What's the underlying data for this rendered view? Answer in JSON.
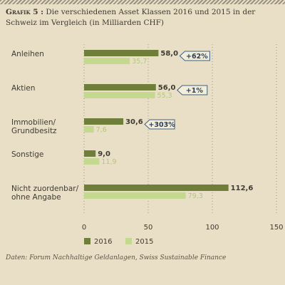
{
  "title_label": "Grafik 5 :",
  "title_text": "Die verschiedenen Asset Klassen 2016 und 2015 in der Schweiz im Vergleich (in Milliarden CHF)",
  "source": "Daten: Forum Nachhaltige Geldanlagen, Swiss Sustainable Finance",
  "colors": {
    "s2016": "#6f7f3a",
    "s2015": "#c4d890",
    "callout_fill": "#f3eed8",
    "callout_stroke": "#3e5f88",
    "text": "#3f3a32",
    "axis": "#7a7467"
  },
  "chart_data": {
    "type": "bar",
    "orientation": "horizontal",
    "categories": [
      "Anleihen",
      "Aktien",
      "Immobilien/ Grundbesitz",
      "Sonstige",
      "Nicht zuordenbar/ ohne Angabe"
    ],
    "series": [
      {
        "name": "2016",
        "values": [
          58.0,
          56.0,
          30.6,
          9.0,
          112.6
        ],
        "labels": [
          "58,0",
          "56,0",
          "30,6",
          "9,0",
          "112,6"
        ]
      },
      {
        "name": "2015",
        "values": [
          35.7,
          55.3,
          7.6,
          11.9,
          79.3
        ],
        "labels": [
          "35,7",
          "55,3",
          "7,6",
          "11,9",
          "79,3"
        ]
      }
    ],
    "changes": [
      "+62%",
      "+1%",
      "+303%",
      "",
      ""
    ],
    "xlim": [
      0,
      150
    ],
    "xticks": [
      "0",
      "50",
      "100",
      "150"
    ],
    "legend": [
      "2016",
      "2015"
    ],
    "legend_position": "bottom"
  }
}
